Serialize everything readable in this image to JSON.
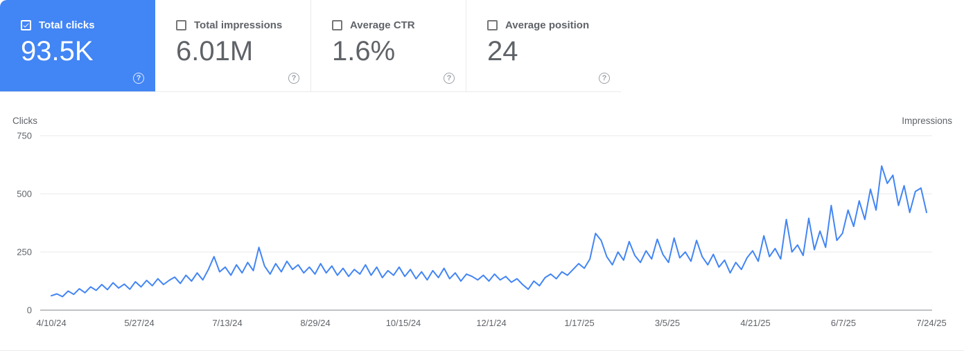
{
  "metrics": [
    {
      "label": "Total clicks",
      "value": "93.5K",
      "checked": true,
      "selected": true
    },
    {
      "label": "Total impressions",
      "value": "6.01M",
      "checked": false,
      "selected": false
    },
    {
      "label": "Average CTR",
      "value": "1.6%",
      "checked": false,
      "selected": false
    },
    {
      "label": "Average position",
      "value": "24",
      "checked": false,
      "selected": false
    }
  ],
  "help_glyph": "?",
  "colors": {
    "selected_card_bg": "#4285f4",
    "line": "#4285f4",
    "text_gray": "#5f6368",
    "grid": "#e8e8e8",
    "axis": "#80868b"
  },
  "chart_data": {
    "type": "line",
    "left_axis_label": "Clicks",
    "right_axis_label": "Impressions",
    "y_ticks": [
      750,
      500,
      250,
      0
    ],
    "ylim": [
      0,
      750
    ],
    "grid": "horizontal",
    "x_tick_labels": [
      "4/10/24",
      "5/27/24",
      "7/13/24",
      "8/29/24",
      "10/15/24",
      "12/1/24",
      "1/17/25",
      "3/5/25",
      "4/21/25",
      "6/7/25",
      "7/24/25"
    ],
    "series": [
      {
        "name": "Total clicks",
        "color": "#4285f4",
        "values": [
          62,
          70,
          58,
          82,
          68,
          92,
          75,
          100,
          85,
          110,
          88,
          118,
          95,
          112,
          90,
          122,
          100,
          128,
          105,
          135,
          110,
          128,
          142,
          115,
          150,
          125,
          160,
          130,
          175,
          230,
          165,
          185,
          150,
          195,
          160,
          205,
          170,
          270,
          190,
          155,
          200,
          165,
          210,
          175,
          195,
          160,
          185,
          155,
          200,
          160,
          190,
          150,
          180,
          145,
          175,
          155,
          195,
          150,
          185,
          140,
          170,
          150,
          185,
          145,
          175,
          135,
          165,
          130,
          170,
          140,
          180,
          135,
          160,
          125,
          155,
          145,
          130,
          150,
          125,
          155,
          130,
          145,
          120,
          135,
          110,
          90,
          125,
          105,
          140,
          155,
          135,
          165,
          150,
          175,
          200,
          180,
          220,
          330,
          300,
          230,
          195,
          250,
          215,
          295,
          235,
          205,
          255,
          220,
          305,
          240,
          205,
          310,
          225,
          250,
          210,
          300,
          230,
          195,
          240,
          185,
          215,
          160,
          205,
          175,
          225,
          255,
          210,
          320,
          230,
          265,
          220,
          390,
          250,
          280,
          235,
          395,
          260,
          340,
          270,
          450,
          300,
          330,
          430,
          360,
          470,
          390,
          520,
          430,
          620,
          545,
          580,
          450,
          535,
          420,
          510,
          525,
          420
        ]
      }
    ]
  }
}
